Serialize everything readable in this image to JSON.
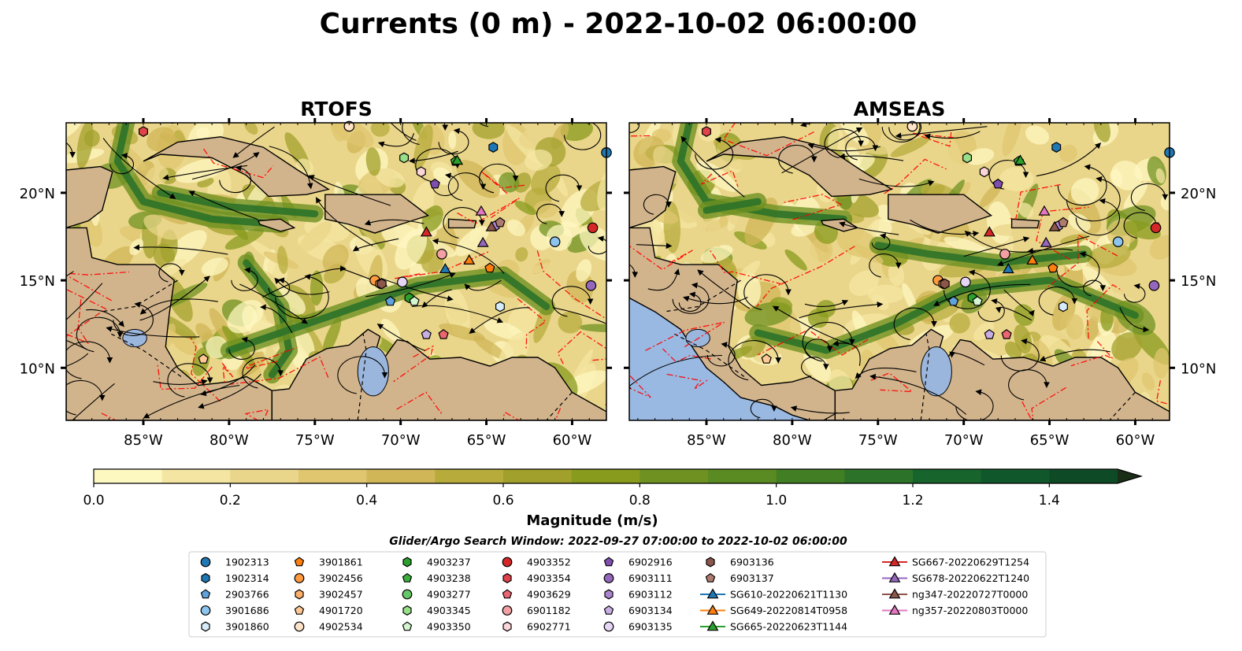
{
  "figure": {
    "title": "Currents (0 m) - 2022-10-02 06:00:00"
  },
  "chart_data": [
    {
      "type": "streamline-map",
      "title": "RTOFS",
      "xlim": [
        -89.5,
        -58
      ],
      "ylim": [
        7,
        24
      ],
      "x_ticks": [
        -85,
        -80,
        -75,
        -70,
        -65,
        -60
      ],
      "x_tick_labels": [
        "85°W",
        "80°W",
        "75°W",
        "70°W",
        "65°W",
        "60°W"
      ],
      "y_ticks": [
        10,
        15,
        20
      ],
      "y_tick_labels": [
        "10°N",
        "15°N",
        "20°N"
      ],
      "y_axis_side": "left"
    },
    {
      "type": "streamline-map",
      "title": "AMSEAS",
      "xlim": [
        -89.5,
        -58
      ],
      "ylim": [
        7,
        24
      ],
      "x_ticks": [
        -85,
        -80,
        -75,
        -70,
        -65,
        -60
      ],
      "x_tick_labels": [
        "85°W",
        "80°W",
        "75°W",
        "70°W",
        "65°W",
        "60°W"
      ],
      "y_ticks": [
        10,
        15,
        20
      ],
      "y_tick_labels": [
        "10°N",
        "15°N",
        "20°N"
      ],
      "y_axis_side": "right"
    }
  ],
  "colorbar": {
    "label": "Magnitude (m/s)",
    "min": 0.0,
    "max": 1.5,
    "ticks": [
      0.0,
      0.2,
      0.4,
      0.6,
      0.8,
      1.0,
      1.2,
      1.4
    ],
    "tick_labels": [
      "0.0",
      "0.2",
      "0.4",
      "0.6",
      "0.8",
      "1.0",
      "1.2",
      "1.4"
    ],
    "extend": "max",
    "colors": [
      "#fdf7c0",
      "#f4e6a2",
      "#ead68a",
      "#dfc66f",
      "#d0b657",
      "#b7ab3c",
      "#a1a02c",
      "#889b1d",
      "#6f9122",
      "#5a8a22",
      "#427f24",
      "#2c7229",
      "#17642c",
      "#10582b",
      "#0f4a27",
      "#163a21",
      "#1a2d17"
    ]
  },
  "search_window": "Glider/Argo Search Window: 2022-09-27 07:00:00 to 2022-10-02 06:00:00",
  "legend": {
    "columns": [
      [
        {
          "label": "1902313",
          "marker": "circle",
          "color": "#1f77b4"
        },
        {
          "label": "1902314",
          "marker": "hexagon",
          "color": "#1f77b4"
        },
        {
          "label": "2903766",
          "marker": "pentagon",
          "color": "#5fa2dd"
        },
        {
          "label": "3901686",
          "marker": "circle",
          "color": "#8cc4ee"
        },
        {
          "label": "3901860",
          "marker": "hexagon",
          "color": "#d6ecfa"
        }
      ],
      [
        {
          "label": "3901861",
          "marker": "pentagon",
          "color": "#ff7f0e"
        },
        {
          "label": "3902456",
          "marker": "circle",
          "color": "#ff9a3e"
        },
        {
          "label": "3902457",
          "marker": "hexagon",
          "color": "#ffb06a"
        },
        {
          "label": "4901720",
          "marker": "pentagon",
          "color": "#ffc894"
        },
        {
          "label": "4902534",
          "marker": "circle",
          "color": "#ffe3c8"
        }
      ],
      [
        {
          "label": "4903237",
          "marker": "hexagon",
          "color": "#2ca02c"
        },
        {
          "label": "4903238",
          "marker": "pentagon",
          "color": "#3bb03b"
        },
        {
          "label": "4903277",
          "marker": "circle",
          "color": "#66c766"
        },
        {
          "label": "4903345",
          "marker": "hexagon",
          "color": "#98df8a"
        },
        {
          "label": "4903350",
          "marker": "pentagon",
          "color": "#d5f5d0"
        }
      ],
      [
        {
          "label": "4903352",
          "marker": "circle",
          "color": "#d62728"
        },
        {
          "label": "4903354",
          "marker": "hexagon",
          "color": "#e0434a"
        },
        {
          "label": "4903629",
          "marker": "pentagon",
          "color": "#ea6670"
        },
        {
          "label": "6901182",
          "marker": "circle",
          "color": "#f2a0a3"
        },
        {
          "label": "6902771",
          "marker": "hexagon",
          "color": "#fbd6d8"
        }
      ],
      [
        {
          "label": "6902916",
          "marker": "pentagon",
          "color": "#7f4fb0"
        },
        {
          "label": "6903111",
          "marker": "circle",
          "color": "#9467bd"
        },
        {
          "label": "6903112",
          "marker": "hexagon",
          "color": "#ab86cf"
        },
        {
          "label": "6903134",
          "marker": "pentagon",
          "color": "#c9aee3"
        },
        {
          "label": "6903135",
          "marker": "circle",
          "color": "#e6d5f5"
        }
      ],
      [
        {
          "label": "6903136",
          "marker": "hexagon",
          "color": "#8c564b"
        },
        {
          "label": "6903137",
          "marker": "pentagon",
          "color": "#b07b6e"
        },
        {
          "label": "SG610-20220621T1130",
          "marker": "triangle-line",
          "color": "#1f77b4"
        },
        {
          "label": "SG649-20220814T0958",
          "marker": "triangle-line",
          "color": "#ff7f0e"
        },
        {
          "label": "SG665-20220623T1144",
          "marker": "triangle-line",
          "color": "#2ca02c"
        }
      ],
      [
        {
          "label": "SG667-20220629T1254",
          "marker": "triangle-line",
          "color": "#d62728"
        },
        {
          "label": "SG678-20220622T1240",
          "marker": "triangle-line",
          "color": "#9467bd"
        },
        {
          "label": "ng347-20220727T0000",
          "marker": "triangle-line",
          "color": "#8c564b"
        },
        {
          "label": "ng357-20220803T0000",
          "marker": "triangle-line",
          "color": "#e377c2"
        }
      ]
    ]
  },
  "colors": {
    "land": "#d2b48c",
    "lake": "#9bb6dc",
    "pacific": "#99b9e2",
    "eez_boundary": "#ff0000",
    "streamline": "#000000"
  },
  "map_markers": [
    {
      "label": "1902313",
      "lon": -58.0,
      "lat": 22.3
    },
    {
      "label": "1902314",
      "lon": -64.6,
      "lat": 22.6
    },
    {
      "label": "2903766",
      "lon": -70.6,
      "lat": 13.8
    },
    {
      "label": "3901686",
      "lon": -61.0,
      "lat": 17.2
    },
    {
      "label": "3901860",
      "lon": -64.2,
      "lat": 13.5
    },
    {
      "label": "3901861",
      "lon": -64.8,
      "lat": 15.7
    },
    {
      "label": "3902456",
      "lon": -71.5,
      "lat": 15.0
    },
    {
      "label": "3902457",
      "lon": -71.2,
      "lat": 14.8
    },
    {
      "label": "4901720",
      "lon": -81.5,
      "lat": 10.5
    },
    {
      "label": "4902534",
      "lon": -73.0,
      "lat": 23.8
    },
    {
      "label": "4903237",
      "lon": -69.5,
      "lat": 14.0
    },
    {
      "label": "4903238",
      "lon": -66.8,
      "lat": 21.8
    },
    {
      "label": "4903345",
      "lon": -69.8,
      "lat": 22.0
    },
    {
      "label": "4903350",
      "lon": -69.2,
      "lat": 13.8
    },
    {
      "label": "4903352",
      "lon": -58.8,
      "lat": 18.0
    },
    {
      "label": "4903354",
      "lon": -85.0,
      "lat": 23.5
    },
    {
      "label": "4903629",
      "lon": -67.5,
      "lat": 11.9
    },
    {
      "label": "6901182",
      "lon": -67.6,
      "lat": 16.5
    },
    {
      "label": "6902771",
      "lon": -68.8,
      "lat": 21.2
    },
    {
      "label": "6902916",
      "lon": -68.0,
      "lat": 20.5
    },
    {
      "label": "6903111",
      "lon": -58.9,
      "lat": 14.7
    },
    {
      "label": "6903112",
      "lon": -64.5,
      "lat": 18.1
    },
    {
      "label": "6903134",
      "lon": -68.5,
      "lat": 11.9
    },
    {
      "label": "6903135",
      "lon": -69.9,
      "lat": 14.9
    },
    {
      "label": "6903136",
      "lon": -71.1,
      "lat": 14.8
    },
    {
      "label": "6903137",
      "lon": -64.2,
      "lat": 18.3
    },
    {
      "label": "SG610-20220621T1130",
      "lon": -67.4,
      "lat": 15.6
    },
    {
      "label": "SG649-20220814T0958",
      "lon": -66.0,
      "lat": 16.1
    },
    {
      "label": "SG665-20220623T1144",
      "lon": -66.7,
      "lat": 21.8
    },
    {
      "label": "SG667-20220629T1254",
      "lon": -68.5,
      "lat": 17.7
    },
    {
      "label": "SG678-20220622T1240",
      "lon": -65.2,
      "lat": 17.1
    },
    {
      "label": "ng347-20220727T0000",
      "lon": -64.7,
      "lat": 18.0
    },
    {
      "label": "ng357-20220803T0000",
      "lon": -65.3,
      "lat": 18.9
    }
  ]
}
